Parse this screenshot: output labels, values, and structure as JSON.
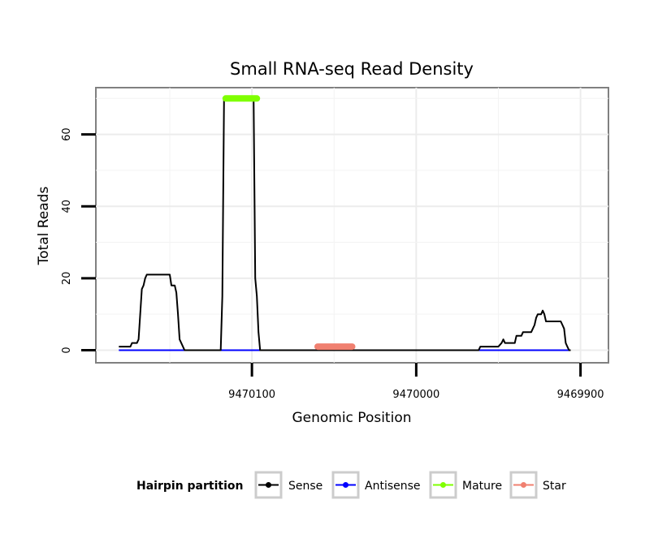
{
  "chart_data": {
    "type": "line",
    "title": "Small RNA-seq Read Density",
    "xlabel": "Genomic Position",
    "ylabel": "Total Reads",
    "x_reversed": true,
    "xlim": [
      9470195,
      9469883
    ],
    "ylim": [
      -3.5,
      73
    ],
    "x_ticks": [
      9470100,
      9470000,
      9469900
    ],
    "x_tick_labels": [
      "9470100",
      "9470000",
      "9469900"
    ],
    "y_ticks": [
      0,
      20,
      40,
      60
    ],
    "y_tick_labels": [
      "0",
      "20",
      "40",
      "60"
    ],
    "grid": true,
    "legend": {
      "title": "Hairpin partition",
      "position": "bottom",
      "entries": [
        "Sense",
        "Antisense",
        "Mature",
        "Star"
      ]
    },
    "series": [
      {
        "name": "Sense",
        "color": "#000000",
        "points": [
          [
            9470181,
            1
          ],
          [
            9470174,
            1
          ],
          [
            9470173,
            2
          ],
          [
            9470170,
            2
          ],
          [
            9470169,
            3
          ],
          [
            9470168,
            10
          ],
          [
            9470167,
            17
          ],
          [
            9470166,
            18
          ],
          [
            9470165,
            20
          ],
          [
            9470164,
            21
          ],
          [
            9470150,
            21
          ],
          [
            9470149,
            18
          ],
          [
            9470147,
            18
          ],
          [
            9470146,
            16
          ],
          [
            9470145,
            10
          ],
          [
            9470144,
            3
          ],
          [
            9470142,
            1
          ],
          [
            9470141,
            0
          ],
          [
            9470119,
            0
          ],
          [
            9470118,
            15
          ],
          [
            9470117,
            70
          ],
          [
            9470099,
            70
          ],
          [
            9470098,
            20
          ],
          [
            9470097,
            15
          ],
          [
            9470096,
            5
          ],
          [
            9470095,
            0
          ],
          [
            9469962,
            0
          ],
          [
            9469961,
            1
          ],
          [
            9469950,
            1
          ],
          [
            9469948,
            2
          ],
          [
            9469947,
            3
          ],
          [
            9469946,
            2
          ],
          [
            9469940,
            2
          ],
          [
            9469939,
            4
          ],
          [
            9469936,
            4
          ],
          [
            9469935,
            5
          ],
          [
            9469930,
            5
          ],
          [
            9469928,
            7
          ],
          [
            9469927,
            9
          ],
          [
            9469926,
            10
          ],
          [
            9469924,
            10
          ],
          [
            9469923,
            11
          ],
          [
            9469922,
            10
          ],
          [
            9469921,
            8
          ],
          [
            9469912,
            8
          ],
          [
            9469911,
            7
          ],
          [
            9469910,
            6
          ],
          [
            9469909,
            2
          ],
          [
            9469908,
            1
          ],
          [
            9469907,
            0
          ],
          [
            9469906,
            0
          ]
        ]
      },
      {
        "name": "Antisense",
        "color": "#0000ff",
        "points": [
          [
            9470181,
            0
          ],
          [
            9469906,
            0
          ]
        ]
      },
      {
        "name": "Mature",
        "color": "#7fff00",
        "points": [
          [
            9470116,
            70
          ],
          [
            9470097,
            70
          ]
        ]
      },
      {
        "name": "Star",
        "color": "#f08070",
        "points": [
          [
            9470060,
            1
          ],
          [
            9470039,
            1
          ]
        ]
      }
    ]
  }
}
